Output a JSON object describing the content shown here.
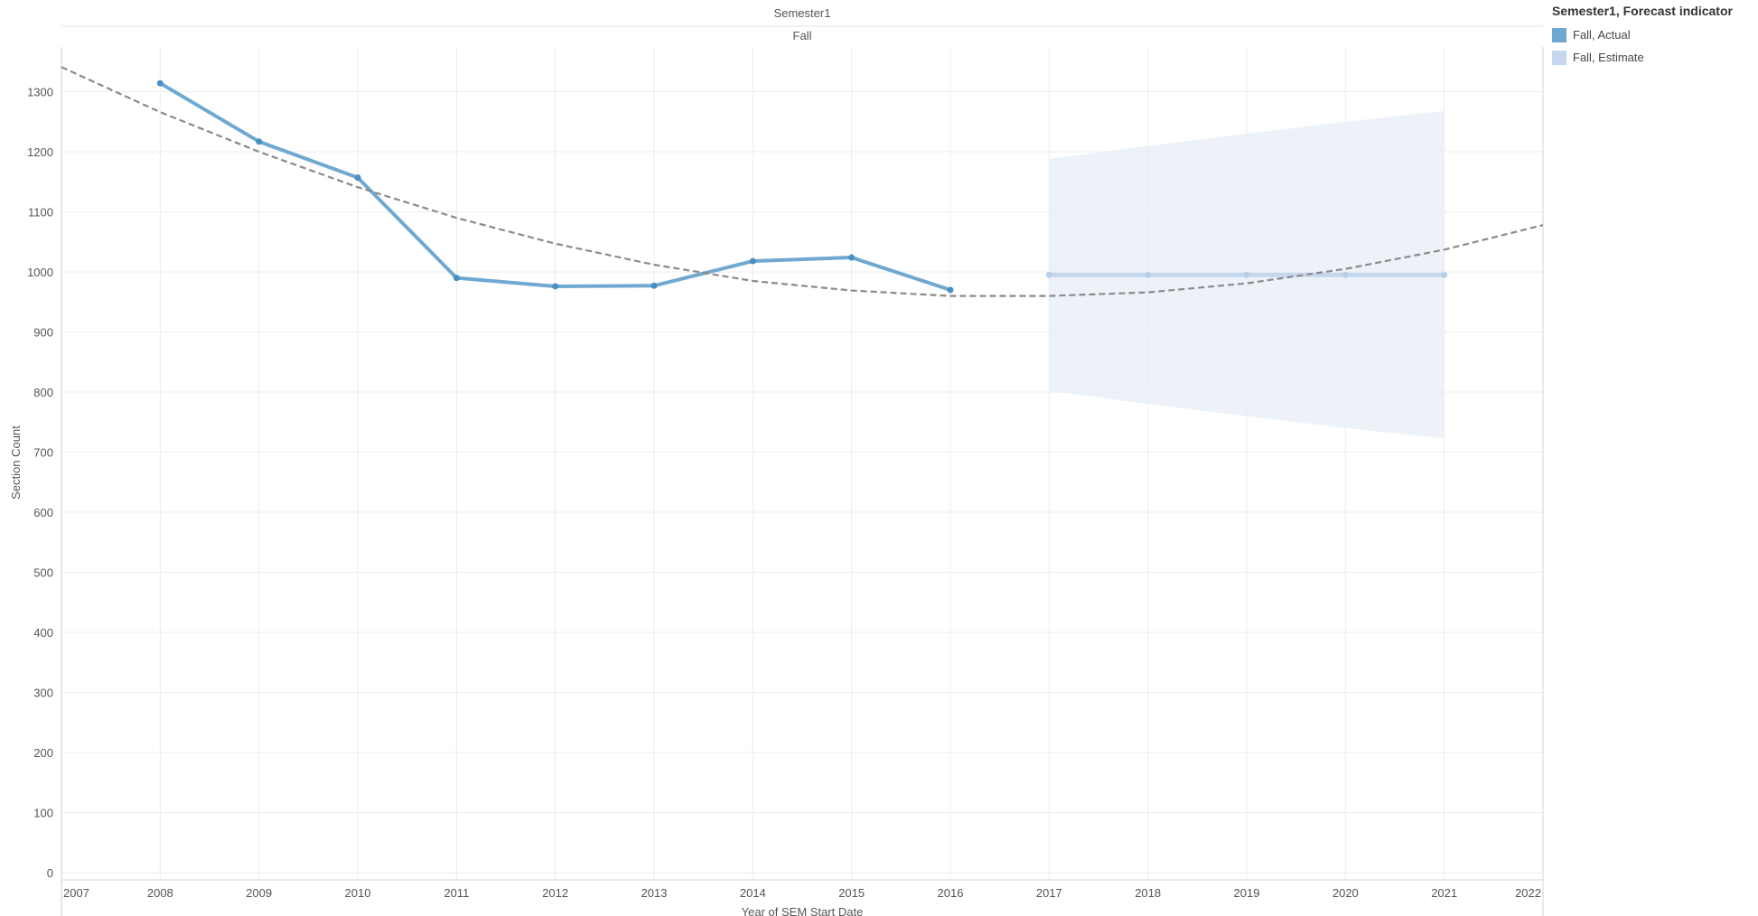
{
  "chart_data": {
    "type": "line",
    "header": "Semester1",
    "pane_label": "Fall",
    "xlabel": "Year of SEM Start Date",
    "ylabel": "Section Count",
    "xlim": [
      2007,
      2022
    ],
    "ylim": [
      0,
      1380
    ],
    "x_ticks": [
      "2007",
      "2008",
      "2009",
      "2010",
      "2011",
      "2012",
      "2013",
      "2014",
      "2015",
      "2016",
      "2017",
      "2018",
      "2019",
      "2020",
      "2021",
      "2022"
    ],
    "y_ticks": [
      "0",
      "100",
      "200",
      "300",
      "400",
      "500",
      "600",
      "700",
      "800",
      "900",
      "1000",
      "1100",
      "1200",
      "1300"
    ],
    "grid": true,
    "legend_position": "top-right",
    "series": [
      {
        "name": "Fall, Actual",
        "color": "#6fa8d0",
        "x": [
          2008,
          2009,
          2010,
          2011,
          2012,
          2013,
          2014,
          2015,
          2016
        ],
        "values": [
          1314,
          1217,
          1157,
          990,
          976,
          977,
          1018,
          1024,
          970
        ]
      },
      {
        "name": "Fall, Estimate",
        "color": "#c6d8ee",
        "x": [
          2017,
          2018,
          2019,
          2020,
          2021
        ],
        "values": [
          995,
          995,
          995,
          995,
          995
        ],
        "band_upper": [
          1188,
          1210,
          1230,
          1250,
          1268
        ],
        "band_lower": [
          802,
          780,
          760,
          740,
          723
        ]
      }
    ],
    "trend_line": {
      "style": "dashed",
      "color": "#8a8a8a",
      "x": [
        2007,
        2008,
        2009,
        2010,
        2011,
        2012,
        2013,
        2014,
        2015,
        2016,
        2017,
        2018,
        2019,
        2020,
        2021,
        2022
      ],
      "values": [
        1341,
        1266,
        1200,
        1141,
        1090,
        1047,
        1012,
        985,
        969,
        960,
        960,
        966,
        981,
        1005,
        1037,
        1078
      ]
    }
  },
  "legend": {
    "title": "Semester1, Forecast indicator",
    "items": [
      {
        "label": "Fall, Actual",
        "color": "#6fa8d0"
      },
      {
        "label": "Fall, Estimate",
        "color": "#c6d8ee"
      }
    ]
  }
}
